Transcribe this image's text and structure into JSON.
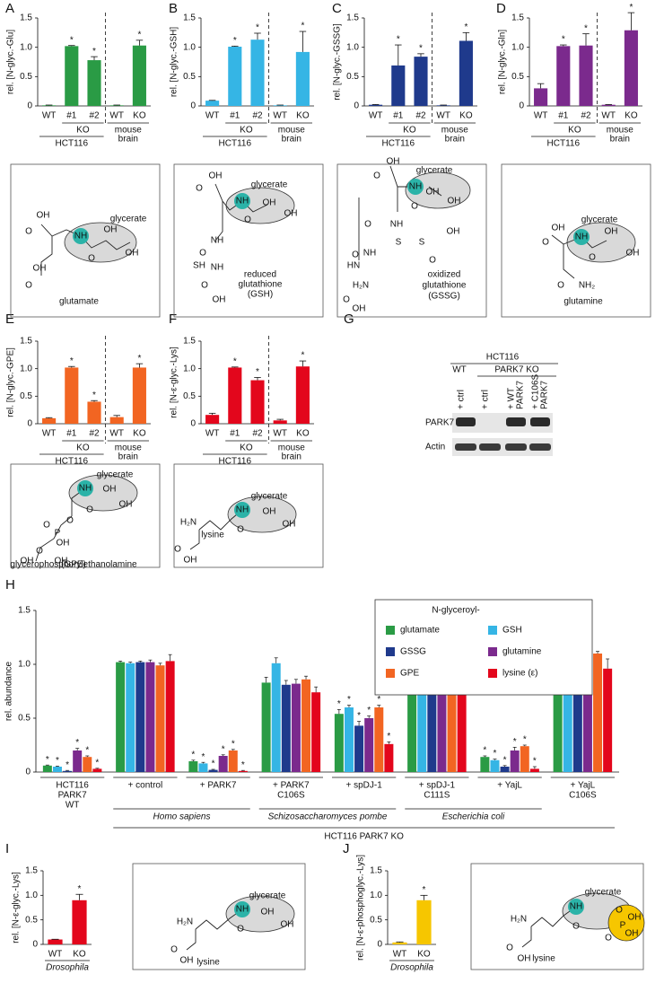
{
  "chart_data": [
    {
      "type": "bar",
      "panel": "A",
      "ylabel": "rel. [N-glyc.-Glu]",
      "categories": [
        "WT",
        "#1",
        "#2",
        "WT",
        "KO"
      ],
      "values": [
        0.01,
        1.02,
        0.78,
        0.01,
        1.03
      ],
      "errors": [
        0.005,
        0.01,
        0.06,
        0.005,
        0.09
      ],
      "stars": [
        null,
        "*",
        "*",
        null,
        "*"
      ],
      "color": "#2a9b45",
      "ylim": [
        0,
        1.5
      ],
      "yticks": [
        0,
        0.5,
        {
          "value": 1,
          "label": "1.0"
        },
        1.5
      ],
      "group_labels": {
        "ko": "KO",
        "cell_line": "HCT116",
        "tissue": [
          "mouse",
          "brain"
        ]
      }
    },
    {
      "type": "bar",
      "panel": "B",
      "ylabel": "rel. [N-glyc.-GSH]",
      "categories": [
        "WT",
        "#1",
        "#2",
        "WT",
        "KO"
      ],
      "values": [
        0.09,
        1.01,
        1.13,
        0.01,
        0.92
      ],
      "errors": [
        0.005,
        0.01,
        0.11,
        0.005,
        0.35
      ],
      "stars": [
        null,
        "*",
        "*",
        null,
        "*"
      ],
      "color": "#35b5e5",
      "ylim": [
        0,
        1.5
      ],
      "yticks": [
        0,
        0.5,
        {
          "value": 1,
          "label": "1.0"
        },
        1.5
      ],
      "group_labels": {
        "ko": "KO",
        "cell_line": "HCT116",
        "tissue": [
          "mouse",
          "brain"
        ]
      }
    },
    {
      "type": "bar",
      "panel": "C",
      "ylabel": "rel. [N-glyc.-GSSG]",
      "categories": [
        "WT",
        "#1",
        "#2",
        "WT",
        "KO"
      ],
      "values": [
        0.02,
        0.69,
        0.84,
        0.01,
        1.11
      ],
      "errors": [
        0.005,
        0.35,
        0.05,
        0.005,
        0.14
      ],
      "stars": [
        null,
        "*",
        "*",
        null,
        "*"
      ],
      "color": "#1f3a8c",
      "ylim": [
        0,
        1.5
      ],
      "yticks": [
        0,
        0.5,
        {
          "value": 1,
          "label": "1.0"
        },
        1.5
      ],
      "group_labels": {
        "ko": "KO",
        "cell_line": "HCT116",
        "tissue": [
          "mouse",
          "brain"
        ]
      }
    },
    {
      "type": "bar",
      "panel": "D",
      "ylabel": "rel. [N-glyc.-Gln]",
      "categories": [
        "WT",
        "#1",
        "#2",
        "WT",
        "KO"
      ],
      "values": [
        0.3,
        1.02,
        1.03,
        0.02,
        1.29
      ],
      "errors": [
        0.08,
        0.02,
        0.2,
        0.005,
        0.3
      ],
      "stars": [
        null,
        "*",
        "*",
        null,
        "*"
      ],
      "color": "#7b2a8d",
      "ylim": [
        0,
        1.5
      ],
      "yticks": [
        0,
        0.5,
        {
          "value": 1,
          "label": "1.0"
        },
        1.5
      ],
      "group_labels": {
        "ko": "KO",
        "cell_line": "HCT116",
        "tissue": [
          "mouse",
          "brain"
        ]
      }
    },
    {
      "type": "bar",
      "panel": "E",
      "ylabel": "rel. [N-glyc.-GPE]",
      "categories": [
        "WT",
        "#1",
        "#2",
        "WT",
        "KO"
      ],
      "values": [
        0.1,
        1.02,
        0.4,
        0.12,
        1.02
      ],
      "errors": [
        0.01,
        0.02,
        0.02,
        0.03,
        0.07
      ],
      "stars": [
        null,
        "*",
        "*",
        null,
        "*"
      ],
      "color": "#f26522",
      "ylim": [
        0,
        1.5
      ],
      "yticks": [
        0,
        0.5,
        {
          "value": 1,
          "label": "1.0"
        },
        1.5
      ],
      "group_labels": {
        "ko": "KO",
        "cell_line": "HCT116",
        "tissue": [
          "mouse",
          "brain"
        ]
      }
    },
    {
      "type": "bar",
      "panel": "F",
      "ylabel": "rel. [N-ε-glyc.-Lys]",
      "categories": [
        "WT",
        "#1",
        "#2",
        "WT",
        "KO"
      ],
      "values": [
        0.16,
        1.02,
        0.79,
        0.06,
        1.04
      ],
      "errors": [
        0.03,
        0.01,
        0.05,
        0.02,
        0.1
      ],
      "stars": [
        null,
        "*",
        "*",
        null,
        "*"
      ],
      "color": "#e3061c",
      "ylim": [
        0,
        1.5
      ],
      "yticks": [
        0,
        0.5,
        {
          "value": 1,
          "label": "1.0"
        },
        1.5
      ],
      "group_labels": {
        "ko": "KO",
        "cell_line": "HCT116",
        "tissue": [
          "mouse",
          "brain"
        ]
      }
    },
    {
      "type": "grouped_bar",
      "panel": "H",
      "ylabel": "rel. abundance",
      "legend_title": "N-glyceroyl-",
      "categories": [
        [
          "HCT116",
          "PARK7",
          "WT"
        ],
        [
          "+ control"
        ],
        [
          "+ PARK7"
        ],
        [
          "+ PARK7",
          "C106S"
        ],
        [
          "+ spDJ-1"
        ],
        [
          "+ spDJ-1",
          "C111S"
        ],
        [
          "+ YajL"
        ],
        [
          "+ YajL",
          "C106S"
        ]
      ],
      "stars": [
        "*",
        null,
        "*",
        null,
        "*",
        null,
        "*",
        null
      ],
      "species": [
        "Homo sapiens",
        "Schizosaccharomyces pombe",
        "Escherichia coli"
      ],
      "background": "HCT116 PARK7 KO",
      "series": [
        {
          "name": "glutamate",
          "color": "#2a9b45",
          "values": [
            0.06,
            1.02,
            0.1,
            0.83,
            0.54,
            0.95,
            0.14,
            1.04
          ],
          "errors": [
            0.005,
            0.01,
            0.01,
            0.05,
            0.04,
            0.02,
            0.01,
            0.03
          ]
        },
        {
          "name": "GSH",
          "color": "#35b5e5",
          "values": [
            0.05,
            1.01,
            0.08,
            1.01,
            0.6,
            0.94,
            0.11,
            0.91
          ],
          "errors": [
            0.005,
            0.01,
            0.01,
            0.05,
            0.02,
            0.03,
            0.01,
            0.06
          ]
        },
        {
          "name": "GSSG",
          "color": "#1f3a8c",
          "values": [
            0.01,
            1.02,
            0.02,
            0.81,
            0.43,
            0.94,
            0.05,
            1.05
          ],
          "errors": [
            0.005,
            0.01,
            0.005,
            0.04,
            0.04,
            0.02,
            0.01,
            0.08
          ]
        },
        {
          "name": "glutamine",
          "color": "#7b2a8d",
          "values": [
            0.2,
            1.02,
            0.15,
            0.82,
            0.5,
            0.92,
            0.2,
            1.09
          ],
          "errors": [
            0.02,
            0.02,
            0.01,
            0.04,
            0.02,
            0.06,
            0.03,
            0.1
          ]
        },
        {
          "name": "GPE",
          "color": "#f26522",
          "values": [
            0.14,
            0.99,
            0.2,
            0.86,
            0.6,
            0.88,
            0.24,
            1.1
          ],
          "errors": [
            0.01,
            0.02,
            0.01,
            0.03,
            0.02,
            0.05,
            0.01,
            0.02
          ]
        },
        {
          "name": "lysine (ε)",
          "color": "#e3061c",
          "values": [
            0.03,
            1.03,
            0.01,
            0.74,
            0.26,
            0.89,
            0.03,
            0.96
          ],
          "errors": [
            0.005,
            0.06,
            0.005,
            0.05,
            0.02,
            0.09,
            0.02,
            0.09
          ]
        }
      ],
      "ylim": [
        0,
        1.5
      ],
      "yticks": [
        0,
        0.5,
        {
          "value": 1,
          "label": "1.0"
        },
        1.5
      ]
    },
    {
      "type": "bar",
      "panel": "I",
      "ylabel": "rel. [N-ε-glyc.-Lys]",
      "categories": [
        "WT",
        "KO"
      ],
      "values": [
        0.1,
        0.9
      ],
      "errors": [
        0.005,
        0.12
      ],
      "stars": [
        null,
        "*"
      ],
      "color": "#e3061c",
      "ylim": [
        0,
        1.5
      ],
      "yticks": [
        0,
        0.5,
        {
          "value": 1,
          "label": "1.0"
        },
        1.5
      ],
      "group_labels": {
        "organism": "Drosophila"
      }
    },
    {
      "type": "bar",
      "panel": "J",
      "ylabel": "rel. [N-ε-phosphoglyc.-Lys]",
      "categories": [
        "WT",
        "KO"
      ],
      "values": [
        0.04,
        0.9
      ],
      "errors": [
        0.01,
        0.1
      ],
      "stars": [
        null,
        "*"
      ],
      "color": "#f6c600",
      "ylim": [
        0,
        1.5
      ],
      "yticks": [
        0,
        0.5,
        {
          "value": 1,
          "label": "1.0"
        },
        1.5
      ],
      "group_labels": {
        "organism": "Drosophila"
      }
    }
  ],
  "panel_letters": [
    "A",
    "B",
    "C",
    "D",
    "E",
    "F",
    "G",
    "H",
    "I",
    "J"
  ],
  "structures": [
    {
      "labels": [
        "glycerate",
        "NH",
        "OH",
        "O",
        "OH",
        "OH",
        "O",
        "OH",
        "O",
        "glutamate"
      ]
    },
    {
      "labels": [
        "glycerate",
        "NH",
        "OH",
        "O",
        "OH",
        "OH",
        "O",
        "NH",
        "O",
        "SH",
        "NH",
        "O",
        "OH",
        "reduced",
        "glutathione",
        "(GSH)"
      ]
    },
    {
      "labels": [
        "glycerate",
        "NH",
        "OH",
        "O",
        "OH",
        "OH",
        "O",
        "NH",
        "O",
        "S",
        "S",
        "NH",
        "O",
        "O",
        "HN",
        "H₂N",
        "OH",
        "O",
        "OH",
        "oxidized",
        "glutathione",
        "(GSSG)"
      ]
    },
    {
      "labels": [
        "glycerate",
        "NH",
        "OH",
        "O",
        "OH",
        "OH",
        "O",
        "O",
        "NH₂",
        "glutamine"
      ]
    },
    {
      "labels": [
        "glycerate",
        "NH",
        "OH",
        "OH",
        "O",
        "O",
        "P",
        "O",
        "OH",
        "O",
        "OH",
        "OH",
        "glycerophosphorylethanolamine",
        "(GPE)"
      ]
    },
    {
      "labels": [
        "glycerate",
        "NH",
        "OH",
        "OH",
        "O",
        "H₂N",
        "O",
        "OH",
        "lysine"
      ]
    },
    {
      "labels": [
        "glycerate",
        "NH",
        "OH",
        "OH",
        "O",
        "H₂N",
        "O",
        "OH",
        "lysine"
      ]
    },
    {
      "labels": [
        "glycerate",
        "NH",
        "O",
        "O",
        "P",
        "OH",
        "OH",
        "O",
        "H₂N",
        "O",
        "OH",
        "lysine"
      ]
    }
  ],
  "blot": {
    "cell_line": "HCT116",
    "wt": "WT",
    "ko": "PARK7 KO",
    "lanes": [
      [
        "+ ctrl"
      ],
      [
        "+ ctrl"
      ],
      [
        "+ WT",
        "PARK7"
      ],
      [
        "+ C106S",
        "PARK7"
      ]
    ],
    "rows": [
      "PARK7",
      "Actin"
    ]
  }
}
